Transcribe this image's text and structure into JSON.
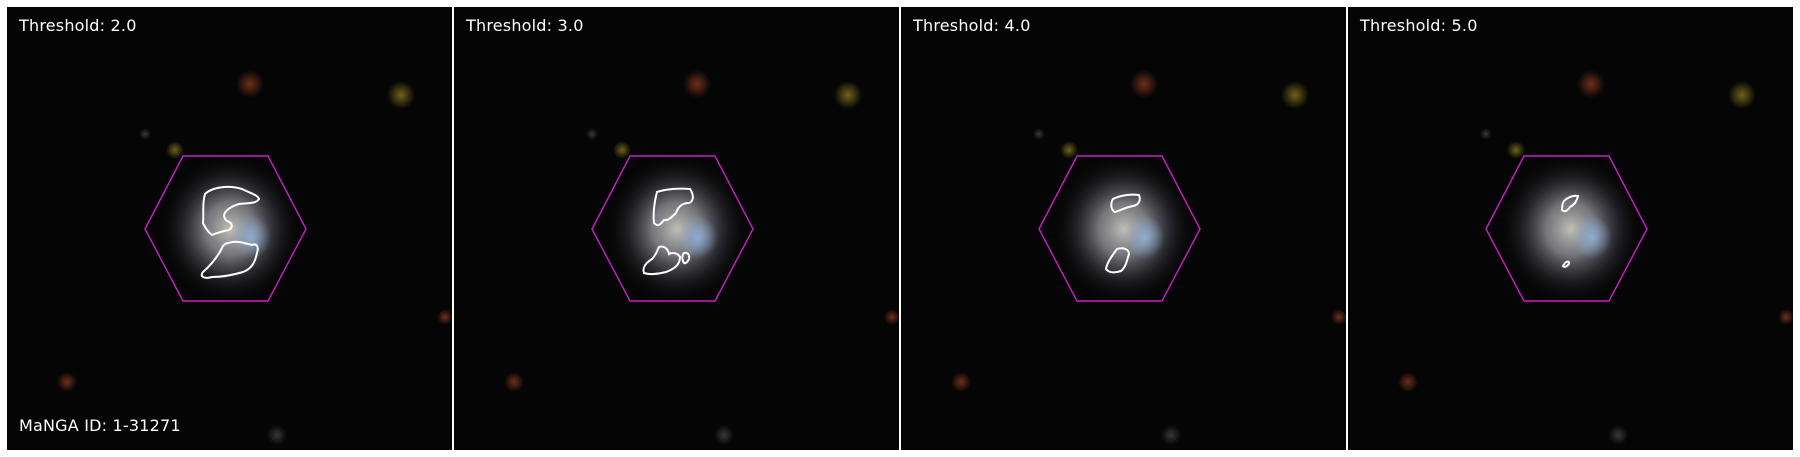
{
  "panels": [
    {
      "threshold_label": "Threshold: 2.0"
    },
    {
      "threshold_label": "Threshold: 3.0"
    },
    {
      "threshold_label": "Threshold: 4.0"
    },
    {
      "threshold_label": "Threshold: 5.0"
    }
  ],
  "manga_id_label": "MaNGA ID: 1-31271",
  "colors": {
    "background": "#050505",
    "hexagon": "#c81ec8",
    "contour": "#ffffff",
    "label": "#ffffff"
  }
}
